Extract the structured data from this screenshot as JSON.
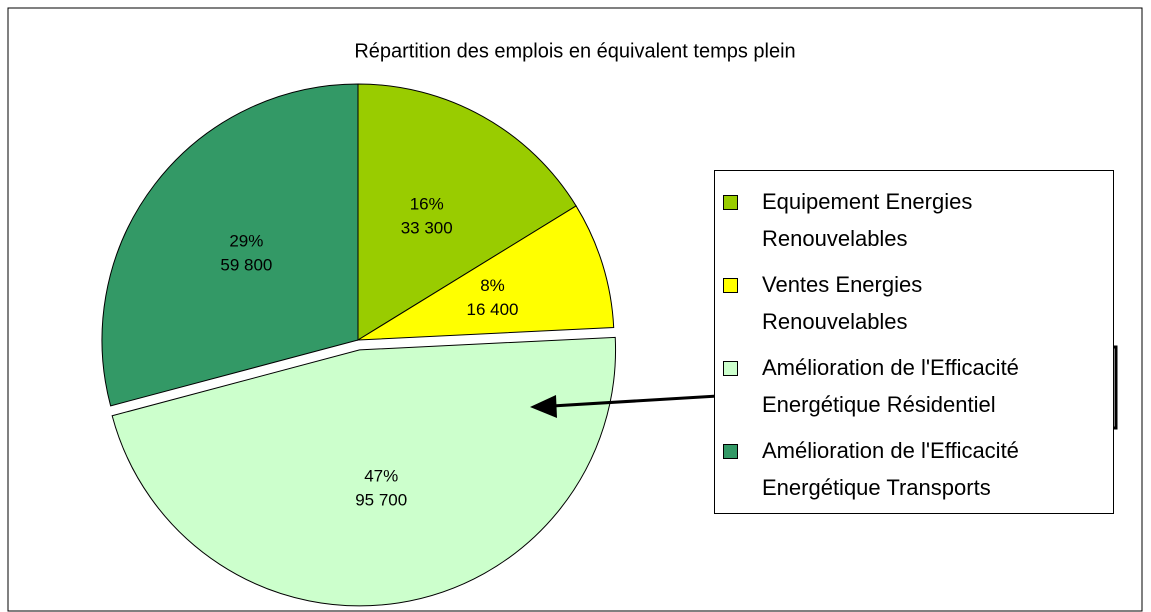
{
  "chart_data": {
    "type": "pie",
    "title": "Répartition des emplois en équivalent temps plein",
    "categories": [
      "Equipement Energies\nRenouvelables",
      "Ventes Energies\nRenouvelables",
      "Amélioration de l'Efficacité\nEnergétique Résidentiel",
      "Amélioration de l'Efficacité\nEnergétique Transports"
    ],
    "values": [
      33300,
      16400,
      95700,
      59800
    ],
    "value_labels": [
      "33 300",
      "16 400",
      "95 700",
      "59 800"
    ],
    "shares": [
      16,
      8,
      47,
      29
    ],
    "share_labels": [
      "16%",
      "8%",
      "47%",
      "29%"
    ],
    "colors": [
      "#99cc00",
      "#ffff00",
      "#ccffcc",
      "#339966"
    ]
  }
}
